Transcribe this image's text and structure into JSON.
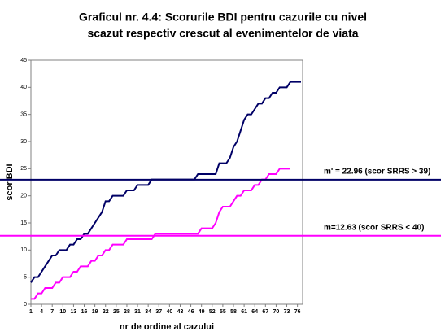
{
  "chart_data": {
    "type": "line",
    "title": [
      "Graficul nr. 4.4: Scorurile BDI pentru cazurile cu nivel",
      "scazut respectiv crescut al evenimentelor de viata"
    ],
    "x_label": "nr de ordine al cazului",
    "y_label": "scor BDI",
    "x": [
      1,
      2,
      3,
      4,
      5,
      6,
      7,
      8,
      9,
      10,
      11,
      12,
      13,
      14,
      15,
      16,
      17,
      18,
      19,
      20,
      21,
      22,
      23,
      24,
      25,
      26,
      27,
      28,
      29,
      30,
      31,
      32,
      33,
      34,
      35,
      36,
      37,
      38,
      39,
      40,
      41,
      42,
      43,
      44,
      45,
      46,
      47,
      48,
      49,
      50,
      51,
      52,
      53,
      54,
      55,
      56,
      57,
      58,
      59,
      60,
      61,
      62,
      63,
      64,
      65,
      66,
      67,
      68,
      69,
      70,
      71,
      72,
      73,
      74,
      75,
      76,
      77
    ],
    "series": [
      {
        "color": "#000066",
        "values": [
          4,
          5,
          5,
          6,
          7,
          8,
          9,
          9,
          10,
          10,
          10,
          11,
          11,
          12,
          12,
          13,
          13,
          14,
          15,
          16,
          17,
          19,
          19,
          20,
          20,
          20,
          20,
          21,
          21,
          21,
          22,
          22,
          22,
          22,
          23,
          23,
          23,
          23,
          23,
          23,
          23,
          23,
          23,
          23,
          23,
          23,
          23,
          24,
          24,
          24,
          24,
          24,
          24,
          26,
          26,
          26,
          27,
          29,
          30,
          32,
          34,
          35,
          35,
          36,
          37,
          37,
          38,
          38,
          39,
          39,
          40,
          40,
          40,
          41,
          41,
          41,
          41
        ]
      },
      {
        "color": "#ff00ff",
        "values": [
          1,
          1,
          2,
          2,
          3,
          3,
          3,
          4,
          4,
          5,
          5,
          5,
          6,
          6,
          7,
          7,
          7,
          8,
          8,
          9,
          9,
          10,
          10,
          11,
          11,
          11,
          11,
          12,
          12,
          12,
          12,
          12,
          12,
          12,
          12,
          13,
          13,
          13,
          13,
          13,
          13,
          13,
          13,
          13,
          13,
          13,
          13,
          13,
          14,
          14,
          14,
          14,
          15,
          17,
          18,
          18,
          18,
          19,
          20,
          20,
          21,
          21,
          21,
          22,
          22,
          23,
          23,
          24,
          24,
          24,
          25,
          25,
          25,
          25,
          null,
          null,
          null
        ]
      }
    ],
    "hlines": [
      {
        "value": 22.96,
        "color": "#000066",
        "label": "m' = 22.96 (scor SRRS > 39)"
      },
      {
        "value": 12.63,
        "color": "#ff00ff",
        "label": "m=12.63 (scor SRRS < 40)"
      }
    ],
    "xlim": [
      1,
      77
    ],
    "xticks": [
      1,
      4,
      7,
      10,
      13,
      16,
      19,
      22,
      25,
      28,
      31,
      34,
      37,
      40,
      43,
      46,
      49,
      52,
      55,
      58,
      61,
      64,
      67,
      70,
      73,
      76
    ],
    "ylim": [
      0,
      45
    ],
    "yticks": [
      0,
      5,
      10,
      15,
      20,
      25,
      30,
      35,
      40,
      45
    ]
  }
}
